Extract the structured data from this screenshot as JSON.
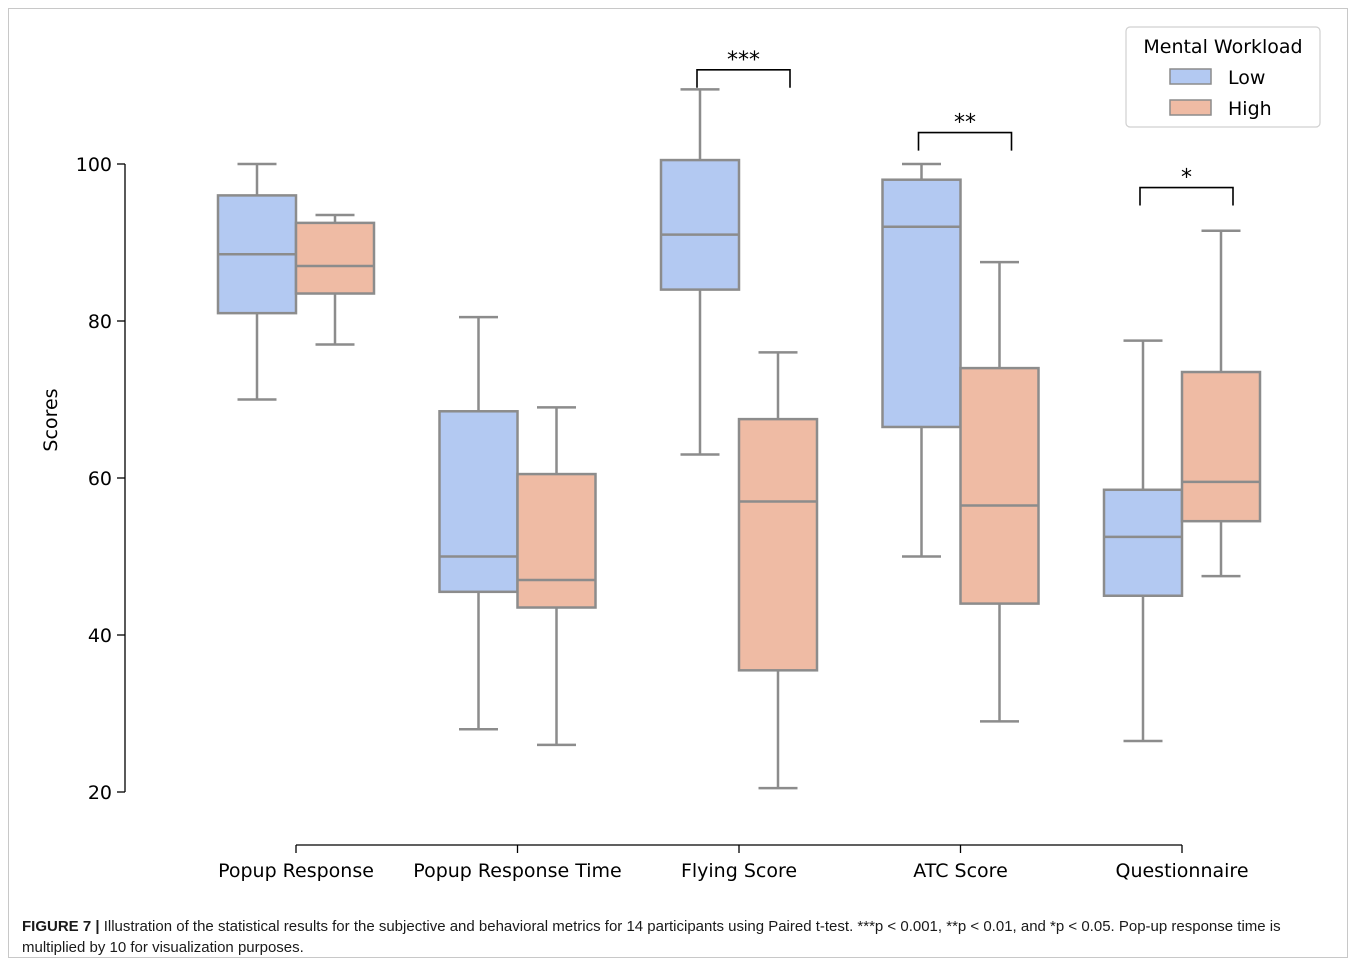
{
  "chart_data": {
    "type": "boxplot",
    "ylabel": "Scores",
    "ylim": [
      20,
      110
    ],
    "yticks": [
      20,
      40,
      60,
      80,
      100
    ],
    "categories": [
      "Popup Response",
      "Popup Response Time",
      "Flying Score",
      "ATC Score",
      "Questionnaire"
    ],
    "legend": {
      "title": "Mental Workload",
      "position": "top-right",
      "entries": [
        "Low",
        "High"
      ]
    },
    "colors": {
      "Low": "#b3c9f2",
      "High": "#efbba4",
      "edge": "#8c8c8c",
      "axis": "#000000"
    },
    "series": [
      {
        "name": "Low",
        "boxes": [
          {
            "min": 70,
            "q1": 81,
            "median": 88.5,
            "q3": 96,
            "max": 100
          },
          {
            "min": 28,
            "q1": 45.5,
            "median": 50,
            "q3": 68.5,
            "max": 80.5
          },
          {
            "min": 63,
            "q1": 84,
            "median": 91,
            "q3": 100.5,
            "max": 109.5
          },
          {
            "min": 50,
            "q1": 66.5,
            "median": 92,
            "q3": 98,
            "max": 100
          },
          {
            "min": 26.5,
            "q1": 45,
            "median": 52.5,
            "q3": 58.5,
            "max": 77.5
          }
        ]
      },
      {
        "name": "High",
        "boxes": [
          {
            "min": 77,
            "q1": 83.5,
            "median": 87,
            "q3": 92.5,
            "max": 93.5
          },
          {
            "min": 26,
            "q1": 43.5,
            "median": 47,
            "q3": 60.5,
            "max": 69
          },
          {
            "min": 20.5,
            "q1": 35.5,
            "median": 57,
            "q3": 67.5,
            "max": 76
          },
          {
            "min": 29,
            "q1": 44,
            "median": 56.5,
            "q3": 74,
            "max": 87.5
          },
          {
            "min": 47.5,
            "q1": 54.5,
            "median": 59.5,
            "q3": 73.5,
            "max": 91.5
          }
        ]
      }
    ],
    "annotations": [
      {
        "category": 2,
        "label": "***",
        "y": 112
      },
      {
        "category": 3,
        "label": "**",
        "y": 104
      },
      {
        "category": 4,
        "label": "*",
        "y": 97
      }
    ]
  },
  "caption": {
    "label": "FIGURE 7 |",
    "text": " Illustration of the statistical results for the subjective and behavioral metrics for 14 participants using Paired t-test. ***p < 0.001, **p < 0.01, and *p < 0.05. Pop-up response time is multiplied by 10 for visualization purposes."
  }
}
